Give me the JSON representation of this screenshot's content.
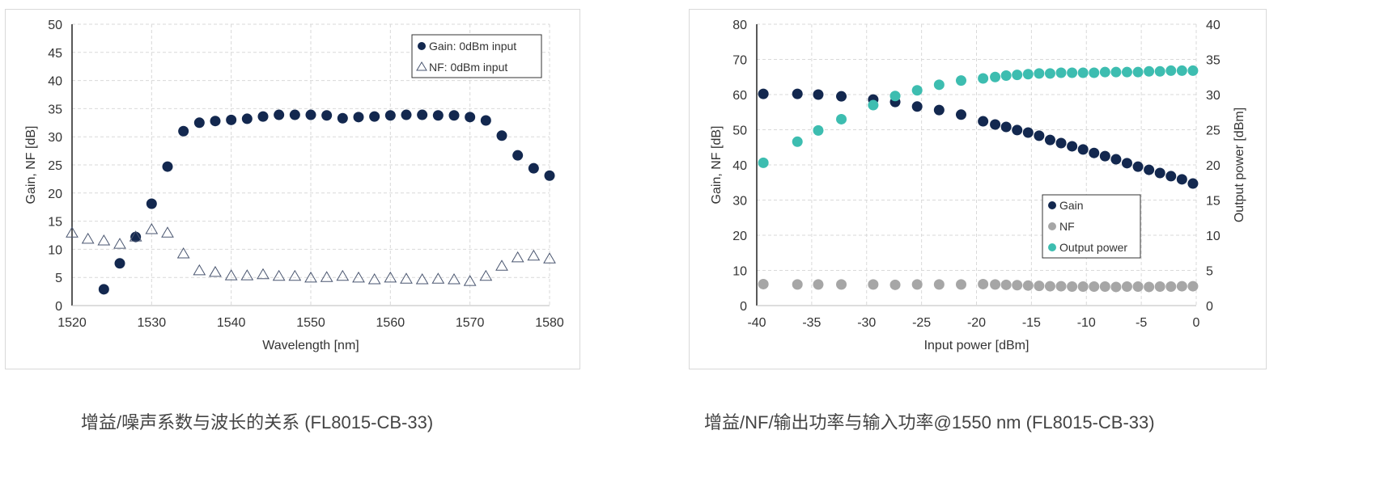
{
  "chart_data": [
    {
      "type": "scatter",
      "xlabel": "Wavelength [nm]",
      "ylabel": "Gain, NF [dB]",
      "xlim": [
        1520,
        1580
      ],
      "ylim": [
        0,
        50
      ],
      "xticks": [
        1520,
        1530,
        1540,
        1550,
        1560,
        1570,
        1580
      ],
      "yticks": [
        0,
        5,
        10,
        15,
        20,
        25,
        30,
        35,
        40,
        45,
        50
      ],
      "grid": true,
      "legend": "top-right",
      "series": [
        {
          "name": "Gain: 0dBm input",
          "marker": "filled-circle",
          "color": "#13284f",
          "x": [
            1524,
            1526,
            1528,
            1530,
            1532,
            1534,
            1536,
            1538,
            1540,
            1542,
            1544,
            1546,
            1548,
            1550,
            1552,
            1554,
            1556,
            1558,
            1560,
            1562,
            1564,
            1566,
            1568,
            1570,
            1572,
            1574,
            1576,
            1578,
            1580
          ],
          "y": [
            2.9,
            7.5,
            12.2,
            18.1,
            24.7,
            31.0,
            32.5,
            32.8,
            33.0,
            33.2,
            33.6,
            33.9,
            33.9,
            33.9,
            33.8,
            33.3,
            33.5,
            33.6,
            33.8,
            33.9,
            33.9,
            33.8,
            33.8,
            33.5,
            32.9,
            30.2,
            26.7,
            24.4,
            23.1
          ]
        },
        {
          "name": "NF: 0dBm input",
          "marker": "open-triangle",
          "color": "#4a5670",
          "x": [
            1520,
            1522,
            1524,
            1526,
            1528,
            1530,
            1532,
            1534,
            1536,
            1538,
            1540,
            1542,
            1544,
            1546,
            1548,
            1550,
            1552,
            1554,
            1556,
            1558,
            1560,
            1562,
            1564,
            1566,
            1568,
            1570,
            1572,
            1574,
            1576,
            1578,
            1580
          ],
          "y": [
            12.9,
            11.8,
            11.5,
            10.9,
            12.2,
            13.5,
            12.9,
            9.2,
            6.2,
            5.9,
            5.3,
            5.3,
            5.5,
            5.2,
            5.2,
            4.9,
            5.0,
            5.2,
            4.9,
            4.6,
            4.9,
            4.7,
            4.6,
            4.7,
            4.6,
            4.3,
            5.2,
            7.0,
            8.5,
            8.8,
            8.3
          ]
        }
      ],
      "caption": "增益/噪声系数与波长的关系 (FL8015-CB-33)"
    },
    {
      "type": "scatter",
      "xlabel": "Input power [dBm]",
      "ylabel": "Gain, NF [dB]",
      "y2label": "Output power [dBm]",
      "xlim": [
        -40,
        0
      ],
      "ylim": [
        0,
        80
      ],
      "y2lim": [
        0,
        40
      ],
      "xticks": [
        -40,
        -35,
        -30,
        -25,
        -20,
        -15,
        -10,
        -5,
        0
      ],
      "yticks": [
        0,
        10,
        20,
        30,
        40,
        50,
        60,
        70,
        80
      ],
      "y2ticks": [
        0,
        5,
        10,
        15,
        20,
        25,
        30,
        35,
        40
      ],
      "grid": true,
      "legend": "center-right",
      "x": [
        -39.4,
        -36.3,
        -34.4,
        -32.3,
        -29.4,
        -27.4,
        -25.4,
        -23.4,
        -21.4,
        -19.4,
        -18.3,
        -17.3,
        -16.3,
        -15.3,
        -14.3,
        -13.3,
        -12.3,
        -11.3,
        -10.3,
        -9.3,
        -8.3,
        -7.3,
        -6.3,
        -5.3,
        -4.3,
        -3.3,
        -2.3,
        -1.3,
        -0.3
      ],
      "series": [
        {
          "name": "Gain",
          "axis": "left",
          "color": "#13284f",
          "y": [
            60.2,
            60.2,
            60.0,
            59.5,
            58.6,
            57.9,
            56.6,
            55.6,
            54.3,
            52.4,
            51.5,
            50.8,
            49.9,
            49.2,
            48.3,
            47.1,
            46.2,
            45.3,
            44.4,
            43.4,
            42.5,
            41.6,
            40.5,
            39.5,
            38.6,
            37.7,
            36.8,
            35.9,
            34.7
          ]
        },
        {
          "name": "NF",
          "axis": "left",
          "color": "#a6a6a6",
          "y": [
            6.1,
            6.0,
            6.0,
            6.0,
            6.0,
            5.9,
            6.0,
            6.0,
            6.0,
            6.1,
            6.0,
            5.9,
            5.8,
            5.7,
            5.6,
            5.5,
            5.5,
            5.4,
            5.4,
            5.4,
            5.4,
            5.3,
            5.4,
            5.4,
            5.3,
            5.4,
            5.4,
            5.5,
            5.5
          ]
        },
        {
          "name": "Output power",
          "axis": "right",
          "color": "#3dbdb0",
          "y": [
            20.3,
            23.3,
            24.9,
            26.5,
            28.5,
            29.8,
            30.6,
            31.4,
            32.0,
            32.3,
            32.5,
            32.7,
            32.8,
            32.9,
            33.0,
            33.0,
            33.1,
            33.1,
            33.1,
            33.1,
            33.2,
            33.2,
            33.2,
            33.2,
            33.3,
            33.3,
            33.4,
            33.4,
            33.4
          ]
        }
      ],
      "caption": "增益/NF/输出功率与输入功率@1550 nm (FL8015-CB-33)"
    }
  ]
}
